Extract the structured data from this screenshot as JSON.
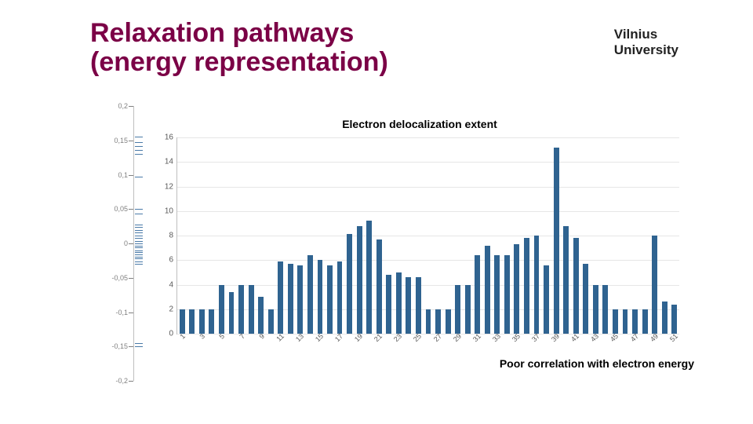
{
  "title": "Relaxation pathways\n(energy representation)",
  "brand_line1": "Vilnius",
  "brand_line2": "University",
  "chart_title": "Electron delocalization extent",
  "caption": "Poor correlation with electron energy",
  "bar_chart": {
    "type": "bar",
    "bar_color": "#2f6390",
    "background_color": "#ffffff",
    "grid_color": "#e6e6e6",
    "axis_color": "#bfbfbf",
    "title_fontsize": 14,
    "label_fontsize": 10,
    "ylim": [
      0,
      16
    ],
    "ytick_step": 2,
    "x_labels": [
      1,
      3,
      5,
      7,
      9,
      11,
      13,
      15,
      17,
      19,
      21,
      23,
      25,
      27,
      29,
      31,
      33,
      35,
      37,
      39,
      41,
      43,
      45,
      47,
      49,
      51
    ],
    "bar_width_ratio": 0.55,
    "values": [
      2.0,
      2.0,
      2.0,
      2.0,
      4.0,
      3.4,
      4.0,
      4.0,
      3.0,
      2.0,
      5.9,
      5.7,
      5.6,
      6.4,
      6.0,
      5.6,
      5.9,
      8.1,
      8.8,
      9.2,
      7.7,
      4.8,
      5.0,
      4.6,
      4.6,
      2.0,
      2.0,
      2.0,
      4.0,
      4.0,
      6.4,
      7.2,
      6.4,
      6.4,
      7.3,
      7.8,
      8.0,
      5.6,
      15.2,
      8.8,
      7.8,
      5.7,
      4.0,
      4.0,
      2.0,
      2.0,
      2.0,
      2.0,
      8.0,
      2.6,
      2.4
    ]
  },
  "left_axis": {
    "ylim": [
      -0.2,
      0.2
    ],
    "tick_step": 0.05,
    "tick_labels": [
      "0,2",
      "0,15",
      "0,1",
      "0,05",
      "0",
      "-0,05",
      "-0,1",
      "-0,15",
      "-0,2"
    ],
    "tick_color": "#808080",
    "tick_fontsize": 9,
    "dash_color": "#4a7aa8",
    "dashes": [
      0.155,
      0.148,
      0.142,
      0.136,
      0.13,
      0.097,
      0.05,
      0.044,
      0.028,
      0.024,
      0.02,
      0.016,
      0.012,
      0.008,
      0.004,
      0.0,
      -0.003,
      -0.006,
      -0.01,
      -0.013,
      -0.016,
      -0.019,
      -0.022,
      -0.026,
      -0.03,
      -0.145,
      -0.15
    ]
  }
}
